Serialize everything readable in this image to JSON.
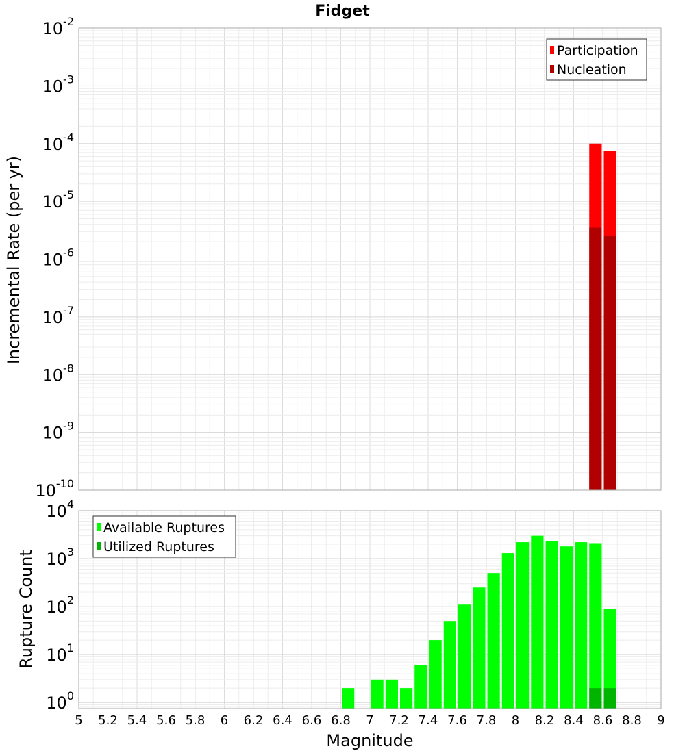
{
  "chart_data": [
    {
      "type": "bar",
      "title": "Fidget",
      "ylabel": "Incremental Rate (per yr)",
      "xlim": [
        5,
        9
      ],
      "ylim": [
        1e-10,
        0.01
      ],
      "yscale": "log",
      "ytick_exponents": [
        "-2",
        "-3",
        "-4",
        "-5",
        "-6",
        "-7",
        "-8",
        "-9",
        "-10"
      ],
      "grid": true,
      "legend": "top-right",
      "bin_width": 0.1,
      "series": [
        {
          "name": "Participation",
          "color": "#ff0000",
          "x": [
            8.55,
            8.65
          ],
          "values": [
            0.0001,
            7.5e-05
          ]
        },
        {
          "name": "Nucleation",
          "color": "#b00000",
          "x": [
            8.55,
            8.65
          ],
          "values": [
            3.5e-06,
            2.5e-06
          ]
        }
      ]
    },
    {
      "type": "bar",
      "xlabel": "Magnitude",
      "ylabel": "Rupture Count",
      "xlim": [
        5,
        9
      ],
      "ylim": [
        0.75,
        10000
      ],
      "yscale": "log",
      "xticks": [
        "5",
        "5.2",
        "5.4",
        "5.6",
        "5.8",
        "6",
        "6.2",
        "6.4",
        "6.6",
        "6.8",
        "7",
        "7.2",
        "7.4",
        "7.6",
        "7.8",
        "8",
        "8.2",
        "8.4",
        "8.6",
        "8.8",
        "9"
      ],
      "ytick_exponents": [
        "4",
        "3",
        "2",
        "1",
        "0"
      ],
      "grid": true,
      "legend": "top-left",
      "bin_width": 0.1,
      "series": [
        {
          "name": "Available Ruptures",
          "color": "#00ff00",
          "x": [
            6.85,
            7.05,
            7.15,
            7.25,
            7.35,
            7.45,
            7.55,
            7.65,
            7.75,
            7.85,
            7.95,
            8.05,
            8.15,
            8.25,
            8.35,
            8.45,
            8.55,
            8.65
          ],
          "values": [
            2,
            3,
            3,
            2,
            6,
            20,
            50,
            110,
            250,
            500,
            1300,
            2200,
            3000,
            2300,
            1800,
            2200,
            2100,
            90
          ]
        },
        {
          "name": "Utilized Ruptures",
          "color": "#00b400",
          "x": [
            8.55,
            8.65
          ],
          "values": [
            2,
            2
          ]
        }
      ]
    }
  ]
}
